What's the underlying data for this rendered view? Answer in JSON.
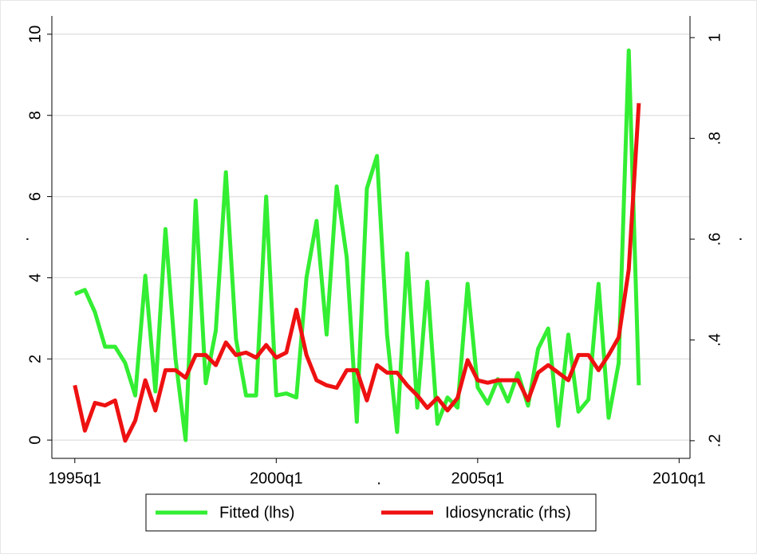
{
  "chart_data": {
    "type": "line",
    "xlabel": ".",
    "ylabel": ".",
    "y2label": ".",
    "x": [
      1995,
      1995.25,
      1995.5,
      1995.75,
      1996,
      1996.25,
      1996.5,
      1996.75,
      1997,
      1997.25,
      1997.5,
      1997.75,
      1998,
      1998.25,
      1998.5,
      1998.75,
      1999,
      1999.25,
      1999.5,
      1999.75,
      2000,
      2000.25,
      2000.5,
      2000.75,
      2001,
      2001.25,
      2001.5,
      2001.75,
      2002,
      2002.25,
      2002.5,
      2002.75,
      2003,
      2003.25,
      2003.5,
      2003.75,
      2004,
      2004.25,
      2004.5,
      2004.75,
      2005,
      2005.25,
      2005.5,
      2005.75,
      2006,
      2006.25,
      2006.5,
      2006.75,
      2007,
      2007.25,
      2007.5,
      2007.75,
      2008,
      2008.25,
      2008.5,
      2008.75,
      2009
    ],
    "series": [
      {
        "name": "Fitted (lhs)",
        "color": "#33ee33",
        "axis": "y",
        "values": [
          3.6,
          3.7,
          3.15,
          2.3,
          2.3,
          1.9,
          1.1,
          4.05,
          1.2,
          5.2,
          2.0,
          0.0,
          5.9,
          1.4,
          2.7,
          6.6,
          2.5,
          1.1,
          1.1,
          6.0,
          1.1,
          1.15,
          1.05,
          4.0,
          5.4,
          2.6,
          6.25,
          4.5,
          0.45,
          6.2,
          7.0,
          2.6,
          0.2,
          4.6,
          0.8,
          3.9,
          0.4,
          1.05,
          0.8,
          3.85,
          1.3,
          0.9,
          1.5,
          0.95,
          1.65,
          0.85,
          2.25,
          2.75,
          0.35,
          2.6,
          0.7,
          1.0,
          3.85,
          0.55,
          1.9,
          9.6,
          1.35
        ]
      },
      {
        "name": "Idiosyncratic (rhs)",
        "color": "#ee1111",
        "axis": "y2",
        "values": [
          0.31,
          0.22,
          0.275,
          0.27,
          0.28,
          0.2,
          0.24,
          0.32,
          0.26,
          0.34,
          0.34,
          0.325,
          0.37,
          0.37,
          0.35,
          0.395,
          0.37,
          0.375,
          0.365,
          0.39,
          0.365,
          0.375,
          0.46,
          0.37,
          0.32,
          0.31,
          0.305,
          0.34,
          0.34,
          0.28,
          0.35,
          0.335,
          0.335,
          0.31,
          0.29,
          0.265,
          0.285,
          0.26,
          0.285,
          0.36,
          0.32,
          0.315,
          0.32,
          0.32,
          0.32,
          0.28,
          0.335,
          0.35,
          0.335,
          0.32,
          0.37,
          0.37,
          0.34,
          0.37,
          0.405,
          0.54,
          0.87
        ]
      }
    ],
    "xlim": [
      1994.43,
      2010.27
    ],
    "xticks": [
      {
        "value": 1995,
        "label": "1995q1"
      },
      {
        "value": 2000,
        "label": "2000q1"
      },
      {
        "value": 2005,
        "label": "2005q1"
      },
      {
        "value": 2010,
        "label": "2010q1"
      }
    ],
    "ylim": [
      -0.45,
      10.45
    ],
    "yticks": [
      0,
      2,
      4,
      6,
      8,
      10
    ],
    "y2lim": [
      0.165,
      1.043
    ],
    "y2ticks": [
      {
        "value": 0.2,
        "label": ".2"
      },
      {
        "value": 0.4,
        "label": ".4"
      },
      {
        "value": 0.6,
        "label": ".6"
      },
      {
        "value": 0.8,
        "label": ".8"
      },
      1
    ],
    "grid": true,
    "legend": "bottom"
  }
}
